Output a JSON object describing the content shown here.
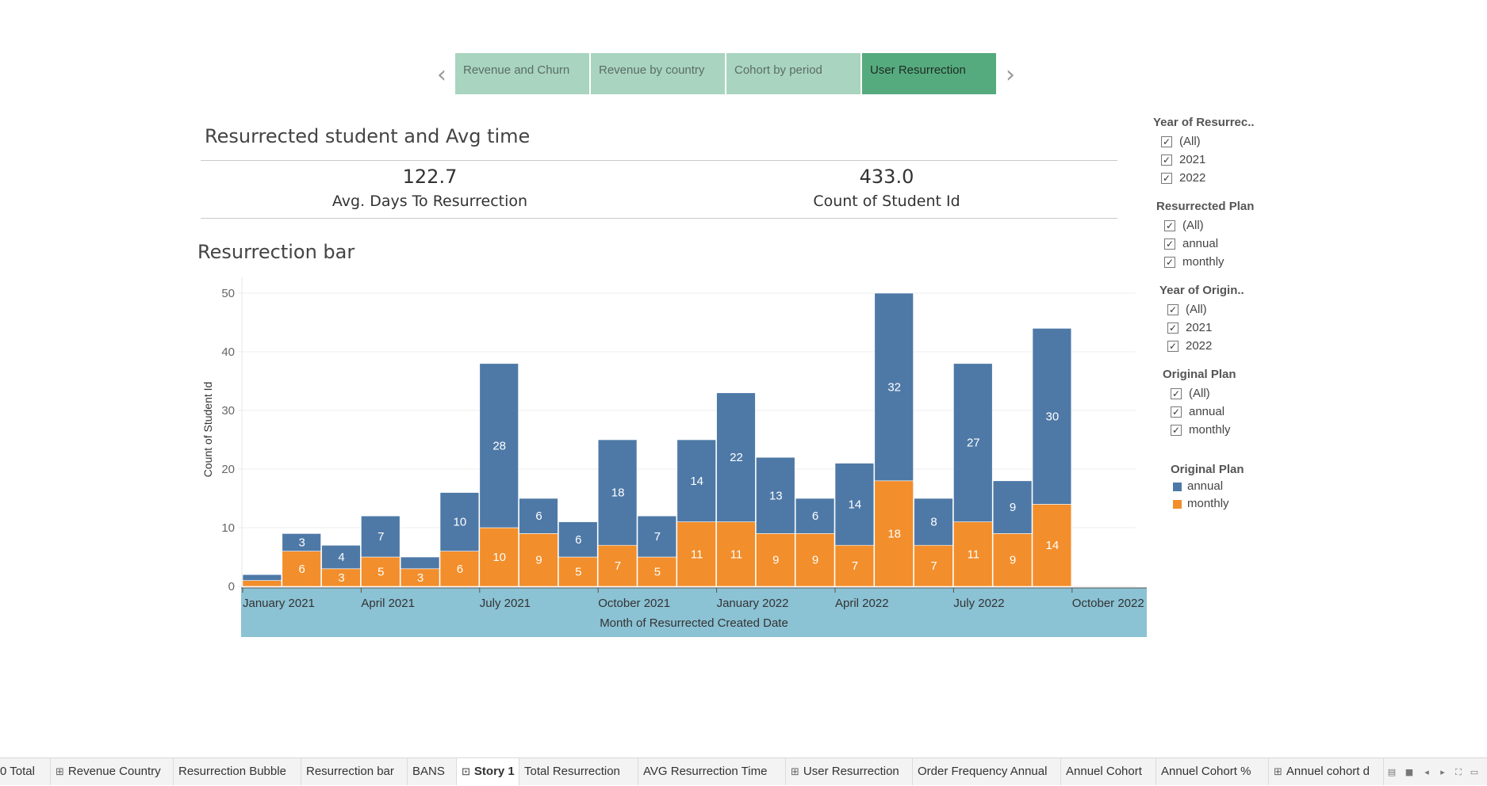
{
  "story": {
    "prev_arrow": "‹",
    "next_arrow": "›",
    "tabs": [
      {
        "label": "Revenue and Churn"
      },
      {
        "label": "Revenue by country"
      },
      {
        "label": "Cohort  by period"
      },
      {
        "label": "User Resurrection"
      }
    ]
  },
  "summary": {
    "title": "Resurrected student and Avg time",
    "avg_days": "122.7",
    "avg_days_label": "Avg. Days To Resurrection",
    "count": "433.0",
    "count_label": "Count of Student Id"
  },
  "bar_title": "Resurrection bar",
  "chart_data": {
    "type": "bar",
    "stacked": true,
    "title": "",
    "xlabel": "Month of Resurrected Created Date",
    "ylabel": "Count of Student Id",
    "ylim": [
      0,
      50
    ],
    "yticks": [
      0,
      10,
      20,
      30,
      40,
      50
    ],
    "grid": true,
    "categories": [
      "Jan 2021",
      "Feb 2021",
      "Mar 2021",
      "Apr 2021",
      "May 2021",
      "Jun 2021",
      "Jul 2021",
      "Aug 2021",
      "Sep 2021",
      "Oct 2021",
      "Nov 2021",
      "Dec 2021",
      "Jan 2022",
      "Feb 2022",
      "Mar 2022",
      "Apr 2022",
      "May 2022",
      "Jun 2022",
      "Jul 2022",
      "Aug 2022",
      "Sep 2022",
      "Oct 2022"
    ],
    "xtick_labels": [
      {
        "label": "January 2021",
        "index": 0
      },
      {
        "label": "April 2021",
        "index": 3
      },
      {
        "label": "July 2021",
        "index": 6
      },
      {
        "label": "October 2021",
        "index": 9
      },
      {
        "label": "January 2022",
        "index": 12
      },
      {
        "label": "April 2022",
        "index": 15
      },
      {
        "label": "July 2022",
        "index": 18
      },
      {
        "label": "October 2022",
        "index": 21
      }
    ],
    "series": [
      {
        "name": "monthly",
        "color": "#f28e2b",
        "values": [
          1,
          6,
          3,
          5,
          3,
          6,
          10,
          9,
          5,
          7,
          5,
          11,
          11,
          9,
          9,
          7,
          18,
          7,
          11,
          9,
          14,
          null
        ],
        "labels": [
          null,
          6,
          3,
          5,
          3,
          6,
          10,
          9,
          5,
          7,
          5,
          11,
          11,
          9,
          9,
          7,
          18,
          7,
          11,
          9,
          14,
          null
        ]
      },
      {
        "name": "annual",
        "color": "#4e79a7",
        "values": [
          1,
          3,
          4,
          7,
          2,
          10,
          28,
          6,
          6,
          18,
          7,
          14,
          22,
          13,
          6,
          14,
          32,
          8,
          27,
          9,
          30,
          null
        ],
        "labels": [
          null,
          3,
          4,
          7,
          null,
          10,
          28,
          6,
          6,
          18,
          7,
          14,
          22,
          13,
          6,
          14,
          32,
          8,
          27,
          9,
          30,
          null
        ]
      }
    ]
  },
  "filters": [
    {
      "title": "Year of Resurrec..",
      "items": [
        "(All)",
        "2021",
        "2022"
      ]
    },
    {
      "title": "Resurrected Plan",
      "items": [
        "(All)",
        "annual",
        "monthly"
      ]
    },
    {
      "title": "Year of Origin..",
      "items": [
        "(All)",
        "2021",
        "2022"
      ]
    },
    {
      "title": "Original Plan",
      "items": [
        "(All)",
        "annual",
        "monthly"
      ]
    }
  ],
  "legend": {
    "title": "Original Plan",
    "items": [
      {
        "label": "annual",
        "color": "#4e79a7"
      },
      {
        "label": "monthly",
        "color": "#f28e2b"
      }
    ]
  },
  "checkmark": "✓",
  "sheet_tabs": [
    {
      "label": "0 Total",
      "icon": ""
    },
    {
      "label": "Revenue Country",
      "icon": "⊞"
    },
    {
      "label": "Resurrection Bubble",
      "icon": ""
    },
    {
      "label": "Resurrection bar",
      "icon": ""
    },
    {
      "label": "BANS",
      "icon": ""
    },
    {
      "label": "Story 1",
      "icon": "⊡"
    },
    {
      "label": "Total Resurrection",
      "icon": ""
    },
    {
      "label": "AVG Resurrection Time",
      "icon": ""
    },
    {
      "label": "User Resurrection",
      "icon": "⊞"
    },
    {
      "label": "Order Frequency Annual",
      "icon": ""
    },
    {
      "label": "Annuel Cohort",
      "icon": ""
    },
    {
      "label": "Annuel Cohort %",
      "icon": ""
    },
    {
      "label": "Annuel cohort d",
      "icon": "⊞"
    }
  ],
  "active_sheet": "Story 1"
}
